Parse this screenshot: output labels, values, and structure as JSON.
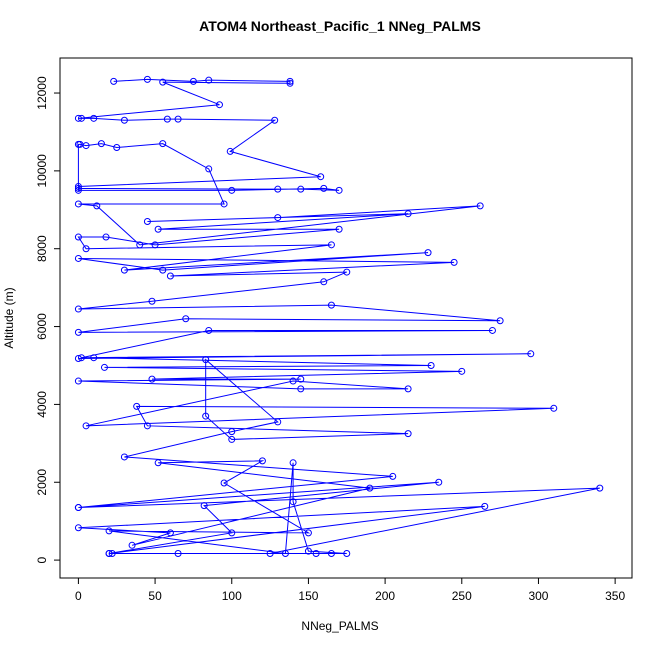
{
  "chart_data": {
    "type": "line",
    "title": "ATOM4 Northeast_Pacific_1 NNeg_PALMS",
    "x_label": "NNeg_PALMS",
    "y_label": "Altitude (m)",
    "color": "#0000ff",
    "markers": true,
    "xlim": [
      -12,
      361
    ],
    "ylim": [
      -460,
      12900
    ],
    "xticks": [
      0,
      50,
      100,
      150,
      200,
      250,
      300,
      350
    ],
    "yticks": [
      0,
      2000,
      4000,
      6000,
      8000,
      10000,
      12000
    ],
    "x": [
      23,
      45,
      75,
      85,
      138,
      138,
      55,
      92,
      0,
      2,
      10,
      30,
      58,
      65,
      128,
      99,
      158,
      0,
      0,
      130,
      145,
      170,
      160,
      100,
      0,
      0,
      1,
      5,
      15,
      25,
      55,
      85,
      95,
      0,
      12,
      40,
      262,
      130,
      45,
      215,
      52,
      170,
      50,
      18,
      0,
      5,
      165,
      30,
      228,
      55,
      0,
      245,
      60,
      175,
      160,
      48,
      0,
      165,
      275,
      70,
      0,
      270,
      85,
      2,
      295,
      0,
      10,
      230,
      17,
      250,
      48,
      145,
      0,
      145,
      215,
      140,
      5,
      310,
      38,
      45,
      215,
      100,
      83,
      83,
      130,
      100,
      30,
      205,
      0,
      235,
      82,
      100,
      20,
      265,
      0,
      60,
      35,
      190,
      52,
      120,
      95,
      150,
      20,
      135,
      140,
      140,
      150,
      175,
      155,
      165,
      20,
      22,
      65,
      125,
      340,
      0
    ],
    "y": [
      12300,
      12350,
      12300,
      12330,
      12300,
      12250,
      12280,
      11700,
      11350,
      11350,
      11350,
      11300,
      11330,
      11330,
      11300,
      10500,
      9850,
      9600,
      9550,
      9530,
      9530,
      9500,
      9550,
      9500,
      9500,
      10680,
      10680,
      10650,
      10700,
      10600,
      10700,
      10050,
      9150,
      9150,
      9100,
      8100,
      9100,
      8800,
      8700,
      8900,
      8500,
      8500,
      8100,
      8300,
      8300,
      8000,
      8100,
      7450,
      7900,
      7450,
      7750,
      7650,
      7300,
      7400,
      7150,
      6650,
      6450,
      6550,
      6150,
      6200,
      5850,
      5900,
      5900,
      5200,
      5300,
      5180,
      5200,
      5000,
      4950,
      4850,
      4650,
      4650,
      4600,
      4400,
      4400,
      4600,
      3450,
      3900,
      3950,
      3450,
      3250,
      3100,
      3700,
      5150,
      3550,
      3300,
      2650,
      2150,
      1350,
      2000,
      1400,
      700,
      170,
      1380,
      830,
      700,
      380,
      1850,
      2500,
      2550,
      1980,
      700,
      750,
      170,
      2500,
      1500,
      230,
      170,
      170,
      170,
      170,
      170,
      170,
      170,
      1850,
      1350
    ]
  }
}
